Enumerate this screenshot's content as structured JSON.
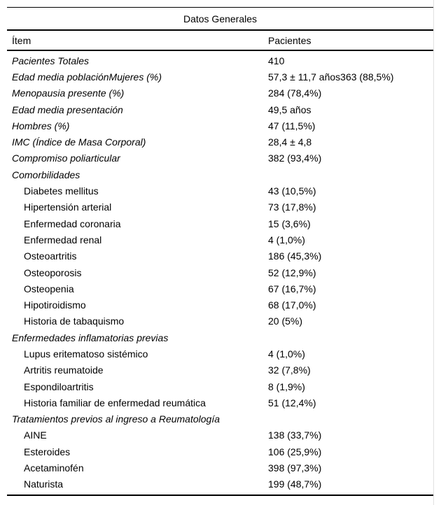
{
  "table": {
    "title": "Datos Generales",
    "columns": [
      "Ítem",
      "Pacientes"
    ],
    "rows": [
      {
        "label": "Pacientes Totales",
        "value": "410",
        "italic": true,
        "indent": false
      },
      {
        "label": "Edad media poblaciónMujeres (%)",
        "value": "57,3 ± 11,7 años363 (88,5%)",
        "italic": true,
        "indent": false
      },
      {
        "label": "Menopausia presente (%)",
        "value": "284 (78,4%)",
        "italic": true,
        "indent": false
      },
      {
        "label": "Edad media presentación",
        "value": "49,5 años",
        "italic": true,
        "indent": false
      },
      {
        "label": "Hombres (%)",
        "value": "47 (11,5%)",
        "italic": true,
        "indent": false
      },
      {
        "label": "IMC (Índice de Masa Corporal)",
        "value": "28,4 ± 4,8",
        "italic": true,
        "indent": false
      },
      {
        "label": "Compromiso poliarticular",
        "value": "382 (93,4%)",
        "italic": true,
        "indent": false
      },
      {
        "label": "Comorbilidades",
        "value": "",
        "italic": true,
        "indent": false
      },
      {
        "label": "Diabetes mellitus",
        "value": "43 (10,5%)",
        "italic": false,
        "indent": true
      },
      {
        "label": "Hipertensión arterial",
        "value": "73 (17,8%)",
        "italic": false,
        "indent": true
      },
      {
        "label": "Enfermedad coronaria",
        "value": "15 (3,6%)",
        "italic": false,
        "indent": true
      },
      {
        "label": "Enfermedad renal",
        "value": "4 (1,0%)",
        "italic": false,
        "indent": true
      },
      {
        "label": "Osteoartritis",
        "value": "186 (45,3%)",
        "italic": false,
        "indent": true
      },
      {
        "label": "Osteoporosis",
        "value": "52 (12,9%)",
        "italic": false,
        "indent": true
      },
      {
        "label": "Osteopenia",
        "value": "67 (16,7%)",
        "italic": false,
        "indent": true
      },
      {
        "label": "Hipotiroidismo",
        "value": "68 (17,0%)",
        "italic": false,
        "indent": true
      },
      {
        "label": "Historia de tabaquismo",
        "value": "20 (5%)",
        "italic": false,
        "indent": true
      },
      {
        "label": "Enfermedades inflamatorias previas",
        "value": "",
        "italic": true,
        "indent": false
      },
      {
        "label": "Lupus eritematoso sistémico",
        "value": "4 (1,0%)",
        "italic": false,
        "indent": true
      },
      {
        "label": "Artritis reumatoide",
        "value": "32 (7,8%)",
        "italic": false,
        "indent": true
      },
      {
        "label": "Espondiloartritis",
        "value": "8 (1,9%)",
        "italic": false,
        "indent": true
      },
      {
        "label": "Historia familiar de enfermedad reumática",
        "value": "51 (12,4%)",
        "italic": false,
        "indent": true
      },
      {
        "label": "Tratamientos previos al ingreso a Reumatología",
        "value": "",
        "italic": true,
        "indent": false
      },
      {
        "label": "AINE",
        "value": "138 (33,7%)",
        "italic": false,
        "indent": true
      },
      {
        "label": "Esteroides",
        "value": "106 (25,9%)",
        "italic": false,
        "indent": true
      },
      {
        "label": "Acetaminofén",
        "value": "398 (97,3%)",
        "italic": false,
        "indent": true
      },
      {
        "label": "Naturista",
        "value": "199 (48,7%)",
        "italic": false,
        "indent": true
      }
    ]
  }
}
